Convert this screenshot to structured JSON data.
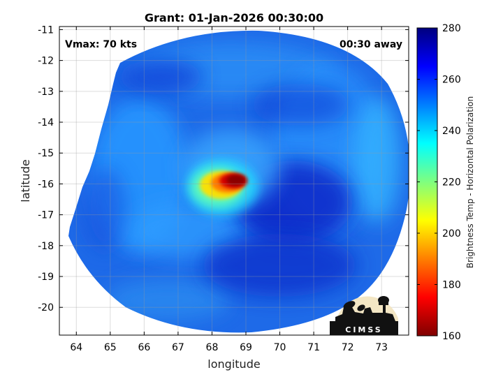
{
  "title": "Grant: 01-Jan-2026 00:30:00",
  "annotations": {
    "vmax": "Vmax: 70 kts",
    "time_away": "00:30 away"
  },
  "logo_text": "CIMSS",
  "chart_data": {
    "type": "heatmap",
    "xlabel": "longitude",
    "ylabel": "latitude",
    "xlim": [
      63.5,
      73.8
    ],
    "ylim": [
      -20.9,
      -10.9
    ],
    "x_ticks": [
      64,
      65,
      66,
      67,
      68,
      69,
      70,
      71,
      72,
      73
    ],
    "y_ticks": [
      -11,
      -12,
      -13,
      -14,
      -15,
      -16,
      -17,
      -18,
      -19,
      -20
    ],
    "grid": true,
    "colorbar": {
      "label": "Brightness Temp - Horizontal Polarization",
      "range": [
        160,
        280
      ],
      "ticks": [
        280,
        260,
        240,
        220,
        200,
        180,
        160
      ],
      "colormap": "jet"
    },
    "swath": {
      "center_lon": 68.5,
      "center_lat": -16.0,
      "west_edge_lon_north": 65.3,
      "west_edge_lat_north": -12.1,
      "west_edge_lon_south": 63.7,
      "west_edge_lat_south": -17.6
    },
    "features": [
      {
        "name": "cold core",
        "lon": 68.55,
        "lat": -15.85,
        "value": 165
      },
      {
        "name": "warm band",
        "lon": 70.2,
        "lat": -16.5,
        "value": 272
      }
    ]
  }
}
